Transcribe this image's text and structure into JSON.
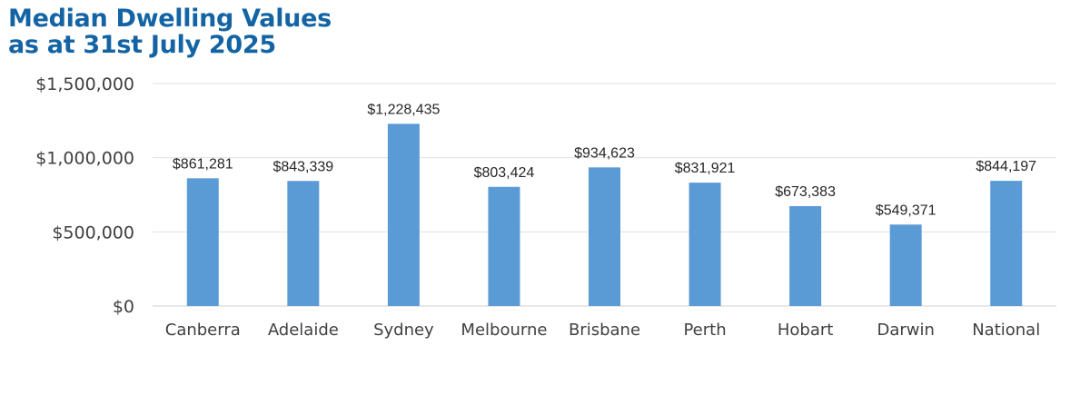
{
  "chart_data": {
    "type": "bar",
    "title": "Median Dwelling Values as at 31st July 2025",
    "title_lines": [
      "Median Dwelling Values",
      "as at 31st July 2025"
    ],
    "categories": [
      "Canberra",
      "Adelaide",
      "Sydney",
      "Melbourne",
      "Brisbane",
      "Perth",
      "Hobart",
      "Darwin",
      "National"
    ],
    "values": [
      861281,
      843339,
      1228435,
      803424,
      934623,
      831921,
      673383,
      549371,
      844197
    ],
    "data_labels": [
      "$861,281",
      "$843,339",
      "$1,228,435",
      "$803,424",
      "$934,623",
      "$831,921",
      "$673,383",
      "$549,371",
      "$844,197"
    ],
    "yticks": [
      0,
      500000,
      1000000,
      1500000
    ],
    "ytick_labels": [
      "$0",
      "$500,000",
      "$1,000,000",
      "$1,500,000"
    ],
    "ylim": [
      0,
      1500000
    ],
    "grid": true,
    "xlabel": "",
    "ylabel": "",
    "colors": {
      "bar": "#5b9bd5",
      "title": "#1464a5",
      "grid": "#e0e0e0"
    }
  }
}
